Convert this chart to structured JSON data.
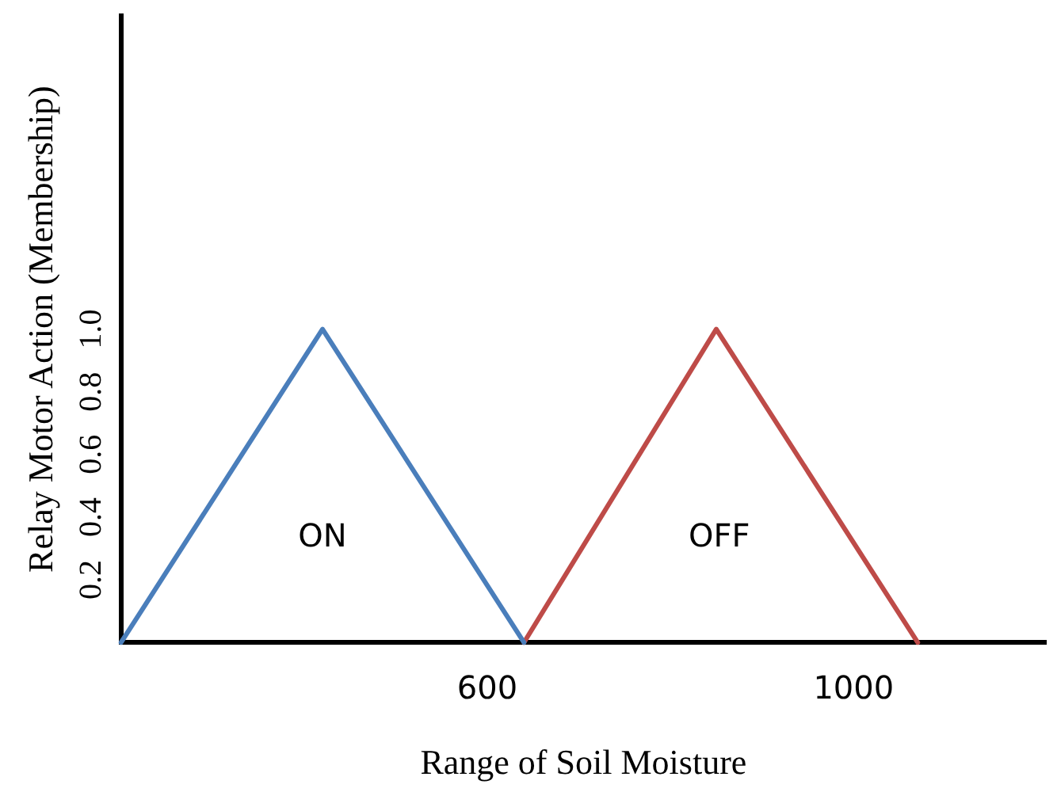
{
  "chart_data": {
    "type": "line",
    "xlabel": "Range of Soil Moisture",
    "ylabel": "Relay Motor Action (Membership)",
    "series": [
      {
        "x": [
          200,
          420,
          640
        ],
        "values": [
          0,
          1,
          0
        ],
        "color": "#4a7ebb"
      },
      {
        "x": [
          640,
          850,
          1070
        ],
        "values": [
          0,
          1,
          0
        ],
        "color": "#be4b48"
      }
    ],
    "xlim": [
      200,
      1210
    ],
    "xticks": [
      600,
      1000
    ],
    "ylim": [
      0,
      2
    ],
    "yticks": [
      {
        "value": 0.2,
        "label": "0.2"
      },
      {
        "value": 0.4,
        "label": "0.4"
      },
      {
        "value": 0.6,
        "label": "0.6"
      },
      {
        "value": 0.8,
        "label": "0.8"
      },
      {
        "value": 1,
        "label": "1.0"
      }
    ],
    "annotations": [
      "ON",
      "OFF"
    ],
    "grid": false,
    "legend": false,
    "marker": "none",
    "line_style": "solid"
  }
}
